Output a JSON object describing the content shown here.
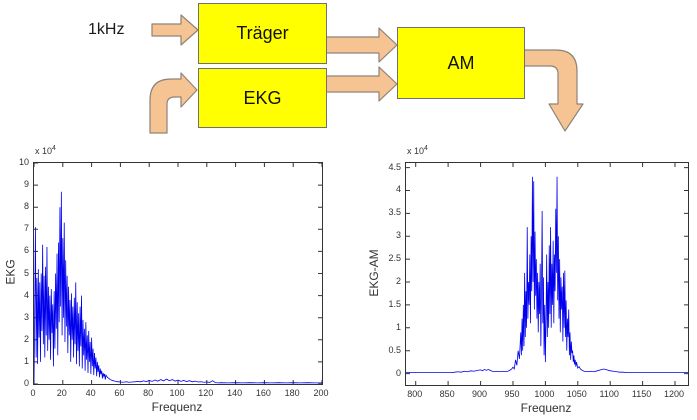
{
  "colors": {
    "block_fill": "#ffff00",
    "block_border": "#707070",
    "arrow_fill": "#f6c493",
    "arrow_border": "#8e8378",
    "trace": "#0000ee",
    "axis": "#333333"
  },
  "diagram": {
    "input_label": "1kHz",
    "blocks": [
      {
        "label": "Träger"
      },
      {
        "label": "EKG"
      },
      {
        "label": "AM"
      }
    ]
  },
  "chart_data": [
    {
      "type": "line",
      "title": "",
      "scale_label": "x 10",
      "scale_exp": "4",
      "xlabel": "Frequenz",
      "ylabel": "EKG",
      "xlim": [
        0,
        200
      ],
      "ylim": [
        0,
        10
      ],
      "grid": false,
      "legend": null,
      "x_ticks": {
        "values": [
          0,
          20,
          40,
          60,
          80,
          100,
          120,
          140,
          160,
          180,
          200
        ],
        "labels": [
          "0",
          "20",
          "40",
          "60",
          "80",
          "100",
          "120",
          "140",
          "160",
          "180",
          "200"
        ]
      },
      "y_ticks": {
        "values": [
          0,
          1,
          2,
          3,
          4,
          5,
          6,
          7,
          8,
          9,
          10
        ],
        "labels": [
          "0",
          "1",
          "2",
          "3",
          "4",
          "5",
          "6",
          "7",
          "8",
          "9",
          "10"
        ]
      },
      "points": [
        [
          0,
          0.05
        ],
        [
          0.5,
          3.2
        ],
        [
          1,
          7.1
        ],
        [
          1.5,
          1.2
        ],
        [
          2,
          4.8
        ],
        [
          2.5,
          0.9
        ],
        [
          3,
          5.2
        ],
        [
          3.5,
          2.1
        ],
        [
          4,
          4.6
        ],
        [
          4.5,
          1
        ],
        [
          5,
          5
        ],
        [
          5.5,
          2.4
        ],
        [
          6,
          6.3
        ],
        [
          6.5,
          1.8
        ],
        [
          7,
          4.9
        ],
        [
          7.5,
          1.2
        ],
        [
          8,
          5.3
        ],
        [
          8.5,
          2.2
        ],
        [
          9,
          6.2
        ],
        [
          9.5,
          1.5
        ],
        [
          10,
          4.4
        ],
        [
          10.5,
          2
        ],
        [
          11,
          4
        ],
        [
          11.5,
          1.1
        ],
        [
          12,
          4.3
        ],
        [
          12.5,
          2.3
        ],
        [
          13,
          3.6
        ],
        [
          13.5,
          0.8
        ],
        [
          14,
          4.2
        ],
        [
          14.5,
          1.6
        ],
        [
          15,
          5
        ],
        [
          15.5,
          2.5
        ],
        [
          16,
          5.9
        ],
        [
          16.5,
          1.3
        ],
        [
          17,
          6.4
        ],
        [
          17.5,
          2.8
        ],
        [
          18,
          8
        ],
        [
          18.5,
          3.5
        ],
        [
          19,
          8.7
        ],
        [
          19.5,
          2.2
        ],
        [
          20,
          6.6
        ],
        [
          20.5,
          3
        ],
        [
          21,
          7.3
        ],
        [
          21.5,
          1.9
        ],
        [
          22,
          5.6
        ],
        [
          22.5,
          2.6
        ],
        [
          23,
          4.9
        ],
        [
          23.5,
          1.4
        ],
        [
          24,
          4.4
        ],
        [
          24.5,
          2.2
        ],
        [
          25,
          3.8
        ],
        [
          25.5,
          1
        ],
        [
          26,
          4.1
        ],
        [
          26.5,
          2
        ],
        [
          27,
          3.5
        ],
        [
          27.5,
          1.2
        ],
        [
          28,
          3.9
        ],
        [
          28.5,
          1.8
        ],
        [
          29,
          4.6
        ],
        [
          29.5,
          0.9
        ],
        [
          30,
          3.7
        ],
        [
          30.5,
          1.5
        ],
        [
          31,
          3.2
        ],
        [
          31.5,
          0.8
        ],
        [
          32,
          3.5
        ],
        [
          32.5,
          1.7
        ],
        [
          33,
          4
        ],
        [
          33.5,
          0.7
        ],
        [
          34,
          2.9
        ],
        [
          34.5,
          1.3
        ],
        [
          35,
          2.5
        ],
        [
          35.5,
          0.6
        ],
        [
          36,
          2.8
        ],
        [
          36.5,
          1.1
        ],
        [
          37,
          2.2
        ],
        [
          37.5,
          0.5
        ],
        [
          38,
          2.4
        ],
        [
          38.5,
          1
        ],
        [
          39,
          1.9
        ],
        [
          39.5,
          0.45
        ],
        [
          40,
          2.1
        ],
        [
          40.5,
          0.8
        ],
        [
          41,
          1.6
        ],
        [
          41.5,
          0.4
        ],
        [
          42,
          1.4
        ],
        [
          42.5,
          0.7
        ],
        [
          43,
          1.2
        ],
        [
          43.5,
          0.35
        ],
        [
          44,
          1
        ],
        [
          44.5,
          0.55
        ],
        [
          45,
          0.85
        ],
        [
          45.5,
          0.3
        ],
        [
          46,
          0.7
        ],
        [
          46.5,
          0.45
        ],
        [
          47,
          0.6
        ],
        [
          47.5,
          0.25
        ],
        [
          48,
          0.5
        ],
        [
          48.5,
          0.35
        ],
        [
          49,
          0.45
        ],
        [
          49.5,
          0.2
        ],
        [
          50,
          0.4
        ],
        [
          51,
          0.3
        ],
        [
          52,
          0.25
        ],
        [
          53,
          0.2
        ],
        [
          54,
          0.17
        ],
        [
          55,
          0.15
        ],
        [
          56,
          0.13
        ],
        [
          57,
          0.12
        ],
        [
          58,
          0.1
        ],
        [
          59,
          0.1
        ],
        [
          60,
          0.09
        ],
        [
          62,
          0.08
        ],
        [
          64,
          0.1
        ],
        [
          66,
          0.08
        ],
        [
          68,
          0.09
        ],
        [
          70,
          0.1
        ],
        [
          72,
          0.12
        ],
        [
          74,
          0.1
        ],
        [
          76,
          0.14
        ],
        [
          78,
          0.11
        ],
        [
          80,
          0.16
        ],
        [
          82,
          0.12
        ],
        [
          84,
          0.18
        ],
        [
          86,
          0.13
        ],
        [
          88,
          0.2
        ],
        [
          90,
          0.14
        ],
        [
          92,
          0.22
        ],
        [
          94,
          0.15
        ],
        [
          96,
          0.2
        ],
        [
          98,
          0.13
        ],
        [
          100,
          0.18
        ],
        [
          102,
          0.12
        ],
        [
          104,
          0.16
        ],
        [
          106,
          0.11
        ],
        [
          108,
          0.15
        ],
        [
          110,
          0.1
        ],
        [
          112,
          0.13
        ],
        [
          114,
          0.09
        ],
        [
          116,
          0.1
        ],
        [
          118,
          0.08
        ],
        [
          120,
          0.09
        ],
        [
          122,
          0.07
        ],
        [
          124,
          0.15
        ],
        [
          126,
          0.06
        ],
        [
          128,
          0.05
        ],
        [
          130,
          0.06
        ],
        [
          135,
          0.05
        ],
        [
          140,
          0.06
        ],
        [
          145,
          0.05
        ],
        [
          150,
          0.06
        ],
        [
          155,
          0.05
        ],
        [
          160,
          0.06
        ],
        [
          165,
          0.05
        ],
        [
          170,
          0.06
        ],
        [
          175,
          0.05
        ],
        [
          180,
          0.06
        ],
        [
          185,
          0.05
        ],
        [
          190,
          0.06
        ],
        [
          195,
          0.05
        ],
        [
          200,
          0.05
        ]
      ]
    },
    {
      "type": "line",
      "title": "",
      "scale_label": "x 10",
      "scale_exp": "4",
      "xlabel": "Frequenz",
      "ylabel": "EKG-AM",
      "xlim": [
        785,
        1220
      ],
      "ylim": [
        -0.25,
        4.6
      ],
      "grid": false,
      "legend": null,
      "x_ticks": {
        "values": [
          800,
          850,
          900,
          950,
          1000,
          1050,
          1100,
          1150,
          1200
        ],
        "labels": [
          "800",
          "850",
          "900",
          "950",
          "1000",
          "1050",
          "1100",
          "1150",
          "1200"
        ]
      },
      "y_ticks": {
        "values": [
          0,
          0.5,
          1,
          1.5,
          2,
          2.5,
          3,
          3.5,
          4,
          4.5
        ],
        "labels": [
          "0",
          "0.5",
          "1",
          "1.5",
          "2",
          "2.5",
          "3",
          "3.5",
          "4",
          "4.5"
        ]
      },
      "points": [
        [
          785,
          0.02
        ],
        [
          800,
          0.02
        ],
        [
          820,
          0.02
        ],
        [
          840,
          0.02
        ],
        [
          855,
          0.02
        ],
        [
          860,
          0.03
        ],
        [
          865,
          0.04
        ],
        [
          870,
          0.03
        ],
        [
          875,
          0.05
        ],
        [
          880,
          0.04
        ],
        [
          885,
          0.06
        ],
        [
          890,
          0.05
        ],
        [
          895,
          0.07
        ],
        [
          900,
          0.08
        ],
        [
          903,
          0.06
        ],
        [
          906,
          0.09
        ],
        [
          909,
          0.07
        ],
        [
          912,
          0.09
        ],
        [
          915,
          0.07
        ],
        [
          918,
          0.05
        ],
        [
          922,
          0.04
        ],
        [
          926,
          0.05
        ],
        [
          930,
          0.04
        ],
        [
          934,
          0.05
        ],
        [
          938,
          0.04
        ],
        [
          942,
          0.05
        ],
        [
          945,
          0.07
        ],
        [
          948,
          0.1
        ],
        [
          950,
          0.14
        ],
        [
          952,
          0.1
        ],
        [
          954,
          0.3
        ],
        [
          956,
          0.18
        ],
        [
          958,
          0.5
        ],
        [
          960,
          0.32
        ],
        [
          962,
          0.9
        ],
        [
          963,
          0.4
        ],
        [
          964,
          1.2
        ],
        [
          965,
          0.5
        ],
        [
          966,
          1.5
        ],
        [
          967,
          0.6
        ],
        [
          968,
          2.2
        ],
        [
          969,
          0.8
        ],
        [
          970,
          1.8
        ],
        [
          971,
          1
        ],
        [
          972,
          3.2
        ],
        [
          973,
          1.2
        ],
        [
          974,
          2
        ],
        [
          975,
          1.5
        ],
        [
          976,
          2.6
        ],
        [
          977,
          1.1
        ],
        [
          978,
          3
        ],
        [
          979,
          1.8
        ],
        [
          980,
          4.3
        ],
        [
          981,
          2
        ],
        [
          982,
          4.2
        ],
        [
          983,
          1.4
        ],
        [
          984,
          3.1
        ],
        [
          985,
          1.7
        ],
        [
          986,
          2.5
        ],
        [
          987,
          1.2
        ],
        [
          988,
          2.2
        ],
        [
          989,
          0.9
        ],
        [
          990,
          2
        ],
        [
          991,
          1.3
        ],
        [
          992,
          2.4
        ],
        [
          993,
          0.6
        ],
        [
          994,
          1.8
        ],
        [
          995,
          3.55
        ],
        [
          996,
          1.1
        ],
        [
          997,
          2.1
        ],
        [
          998,
          0.4
        ],
        [
          999,
          1.5
        ],
        [
          1000,
          0.25
        ],
        [
          1001,
          1.2
        ],
        [
          1002,
          2.6
        ],
        [
          1003,
          0.8
        ],
        [
          1004,
          2
        ],
        [
          1005,
          1
        ],
        [
          1006,
          2.8
        ],
        [
          1007,
          1.3
        ],
        [
          1008,
          3.2
        ],
        [
          1009,
          1
        ],
        [
          1010,
          2.4
        ],
        [
          1011,
          1.5
        ],
        [
          1012,
          2.9
        ],
        [
          1013,
          1.1
        ],
        [
          1014,
          2.6
        ],
        [
          1015,
          1.8
        ],
        [
          1016,
          3.6
        ],
        [
          1017,
          2.2
        ],
        [
          1018,
          4.3
        ],
        [
          1019,
          1.6
        ],
        [
          1020,
          3
        ],
        [
          1021,
          1.2
        ],
        [
          1022,
          2.5
        ],
        [
          1023,
          0.9
        ],
        [
          1024,
          2.1
        ],
        [
          1025,
          1.4
        ],
        [
          1026,
          1.9
        ],
        [
          1027,
          0.7
        ],
        [
          1028,
          2.2
        ],
        [
          1029,
          1
        ],
        [
          1030,
          2.25
        ],
        [
          1031,
          0.8
        ],
        [
          1032,
          1.6
        ],
        [
          1033,
          0.5
        ],
        [
          1034,
          1.2
        ],
        [
          1035,
          0.8
        ],
        [
          1036,
          1.4
        ],
        [
          1037,
          0.4
        ],
        [
          1038,
          0.9
        ],
        [
          1039,
          0.3
        ],
        [
          1040,
          0.7
        ],
        [
          1041,
          0.45
        ],
        [
          1042,
          0.5
        ],
        [
          1043,
          0.25
        ],
        [
          1044,
          0.4
        ],
        [
          1045,
          0.2
        ],
        [
          1046,
          0.3
        ],
        [
          1047,
          0.15
        ],
        [
          1048,
          0.25
        ],
        [
          1050,
          0.12
        ],
        [
          1052,
          0.15
        ],
        [
          1054,
          0.1
        ],
        [
          1056,
          0.08
        ],
        [
          1058,
          0.06
        ],
        [
          1060,
          0.05
        ],
        [
          1065,
          0.04
        ],
        [
          1070,
          0.05
        ],
        [
          1075,
          0.04
        ],
        [
          1080,
          0.06
        ],
        [
          1085,
          0.08
        ],
        [
          1090,
          0.1
        ],
        [
          1095,
          0.08
        ],
        [
          1100,
          0.06
        ],
        [
          1105,
          0.05
        ],
        [
          1110,
          0.04
        ],
        [
          1115,
          0.03
        ],
        [
          1120,
          0.03
        ],
        [
          1125,
          0.02
        ],
        [
          1130,
          0.02
        ],
        [
          1140,
          0.02
        ],
        [
          1150,
          0.02
        ],
        [
          1160,
          0.02
        ],
        [
          1170,
          0.02
        ],
        [
          1180,
          0.02
        ],
        [
          1190,
          0.02
        ],
        [
          1200,
          0.02
        ],
        [
          1210,
          0.02
        ],
        [
          1220,
          0.02
        ]
      ]
    }
  ]
}
